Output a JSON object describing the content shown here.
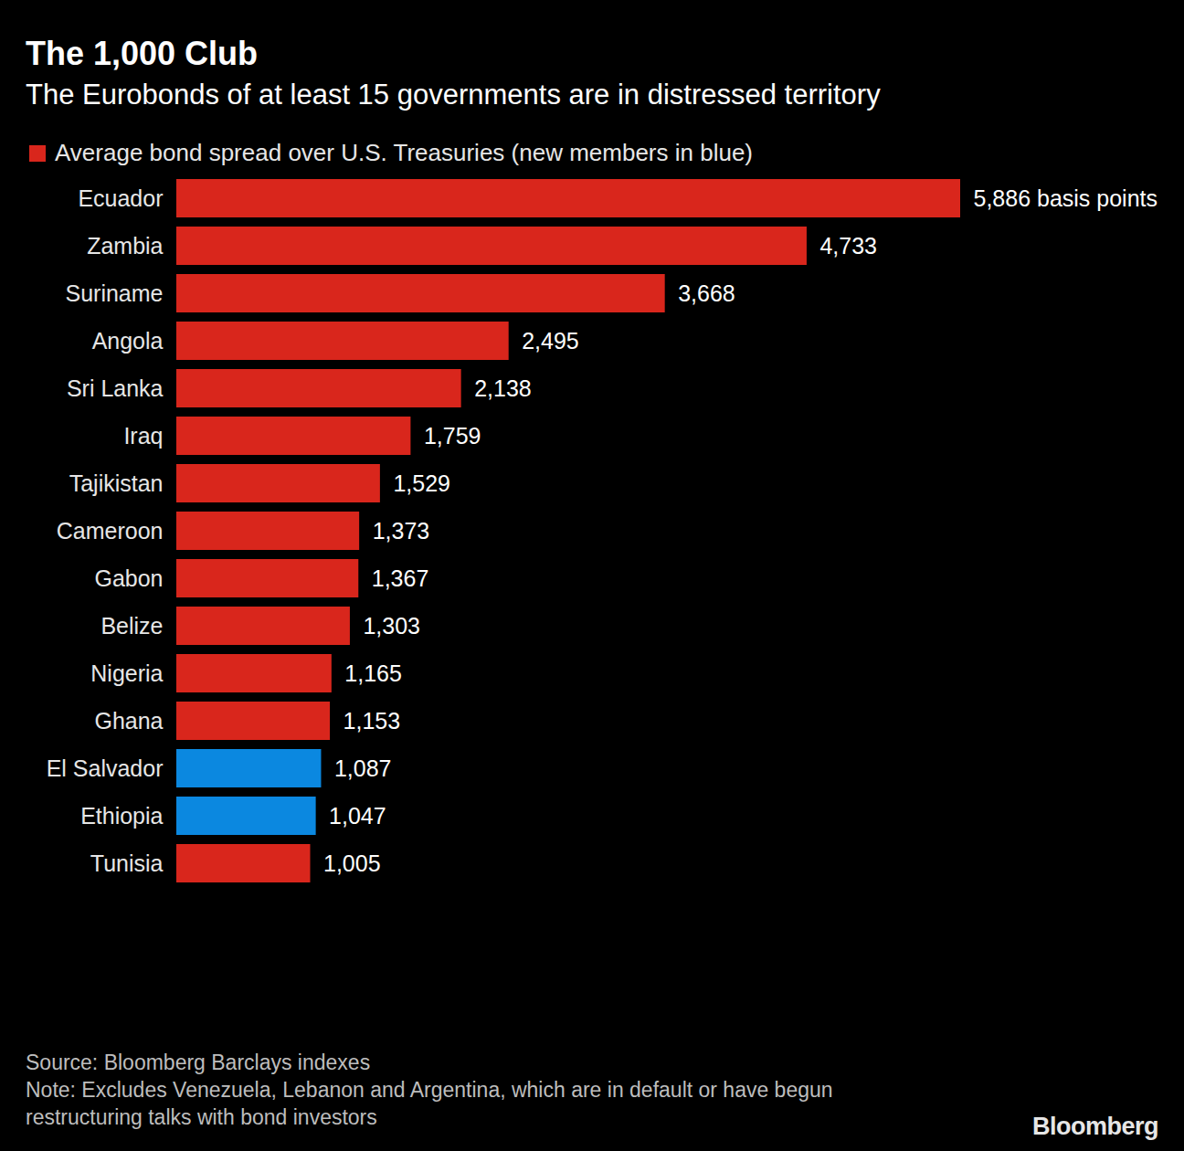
{
  "chart_data": {
    "type": "bar",
    "orientation": "horizontal",
    "title": "The 1,000 Club",
    "subtitle": "The Eurobonds of at least 15 governments are in distressed territory",
    "categories": [
      "Ecuador",
      "Zambia",
      "Suriname",
      "Angola",
      "Sri Lanka",
      "Iraq",
      "Tajikistan",
      "Cameroon",
      "Gabon",
      "Belize",
      "Nigeria",
      "Ghana",
      "El Salvador",
      "Ethiopia",
      "Tunisia"
    ],
    "series": [
      {
        "name": "Average bond spread over U.S. Treasuries (new members in blue)",
        "color": "#d9261c",
        "values": [
          5886,
          4733,
          3668,
          2495,
          2138,
          1759,
          1529,
          1373,
          1367,
          1303,
          1165,
          1153,
          1087,
          1047,
          1005
        ],
        "value_labels": [
          "5,886 basis points",
          "4,733",
          "3,668",
          "2,495",
          "2,138",
          "1,759",
          "1,529",
          "1,373",
          "1,367",
          "1,303",
          "1,165",
          "1,153",
          "1,087",
          "1,047",
          "1,005"
        ],
        "colors": [
          "#d9261c",
          "#d9261c",
          "#d9261c",
          "#d9261c",
          "#d9261c",
          "#d9261c",
          "#d9261c",
          "#d9261c",
          "#d9261c",
          "#d9261c",
          "#d9261c",
          "#d9261c",
          "#0b88e0",
          "#0b88e0",
          "#d9261c"
        ]
      }
    ],
    "xlim": [
      0,
      5886
    ],
    "data_labels": true,
    "tick_labels": "y",
    "grid": false,
    "legend": "top-left",
    "source": "Source: Bloomberg Barclays indexes",
    "note": "Note: Excludes Venezuela, Lebanon and Argentina, which are in default or have begun restructuring talks with bond investors",
    "credit": "Bloomberg"
  }
}
